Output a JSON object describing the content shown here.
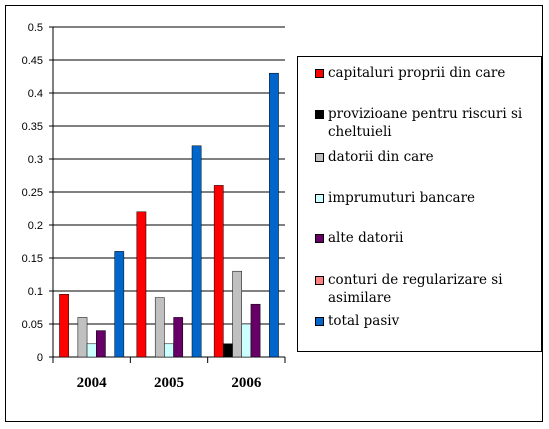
{
  "chart_data": {
    "type": "bar",
    "categories": [
      "2004",
      "2005",
      "2006"
    ],
    "ylim": [
      0,
      0.5
    ],
    "yticks": [
      "0",
      "0.05",
      "0.1",
      "0.15",
      "0.2",
      "0.25",
      "0.3",
      "0.35",
      "0.4",
      "0.45",
      "0.5"
    ],
    "grid": true,
    "legend_position": "right",
    "series": [
      {
        "name": "capitaluri proprii din care",
        "color": "#ff0000",
        "values": [
          0.095,
          0.22,
          0.26
        ]
      },
      {
        "name": "provizioane pentru riscuri si cheltuieli",
        "color": "#000000",
        "values": [
          0,
          0,
          0.02
        ]
      },
      {
        "name": "datorii din care",
        "color": "#c0c0c0",
        "values": [
          0.06,
          0.09,
          0.13
        ]
      },
      {
        "name": "imprumuturi bancare",
        "color": "#ccffff",
        "values": [
          0.02,
          0.02,
          0.05
        ]
      },
      {
        "name": "alte datorii",
        "color": "#660066",
        "values": [
          0.04,
          0.06,
          0.08
        ]
      },
      {
        "name": "conturi de regularizare si asimilare",
        "color": "#ff8080",
        "values": [
          0,
          0,
          0
        ]
      },
      {
        "name": "total pasiv",
        "color": "#0066cc",
        "values": [
          0.16,
          0.32,
          0.43
        ]
      }
    ]
  }
}
